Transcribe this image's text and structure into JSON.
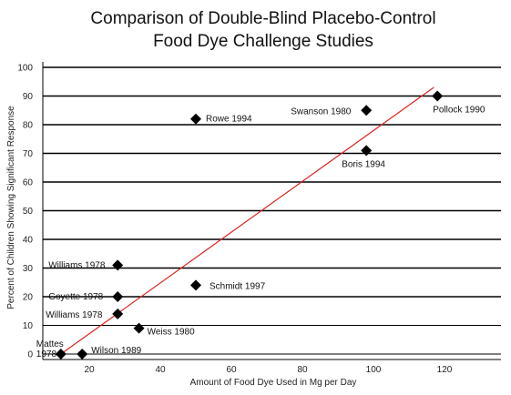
{
  "chart_data": {
    "type": "scatter",
    "title": [
      "Comparison of Double-Blind Placebo-Control",
      "Food Dye Challenge Studies"
    ],
    "xlabel": "Amount of Food Dye Used in Mg per Day",
    "ylabel": "Percent of Children Showing Significant Response",
    "xlim": [
      0,
      140
    ],
    "ylim": [
      0,
      100
    ],
    "x_ticks": [
      "20",
      "40",
      "60",
      "80",
      "100",
      "120"
    ],
    "y_ticks": [
      "0",
      "10",
      "20",
      "30",
      "40",
      "50",
      "60",
      "70",
      "80",
      "90",
      "100"
    ],
    "grid": "horizontal",
    "points": [
      {
        "label": "Mattes 1978",
        "x": 12,
        "y": 0
      },
      {
        "label": "Wilson 1989",
        "x": 18,
        "y": 0
      },
      {
        "label": "Williams 1978",
        "x": 28,
        "y": 31
      },
      {
        "label": "Goyette 1978",
        "x": 28,
        "y": 20
      },
      {
        "label": "Williams 1978",
        "x": 28,
        "y": 14
      },
      {
        "label": "Weiss 1980",
        "x": 34,
        "y": 9
      },
      {
        "label": "Schmidt 1997",
        "x": 50,
        "y": 24
      },
      {
        "label": "Rowe 1994",
        "x": 50,
        "y": 82
      },
      {
        "label": "Swanson 1980",
        "x": 98,
        "y": 85
      },
      {
        "label": "Boris 1994",
        "x": 98,
        "y": 71
      },
      {
        "label": "Pollock 1990",
        "x": 118,
        "y": 90
      }
    ],
    "trendline": {
      "from": [
        12,
        0
      ],
      "to": [
        117,
        93
      ],
      "color": "#e02020"
    },
    "colors": {
      "points": "#000000",
      "grid": "#000000",
      "trendline": "#e02020"
    }
  }
}
